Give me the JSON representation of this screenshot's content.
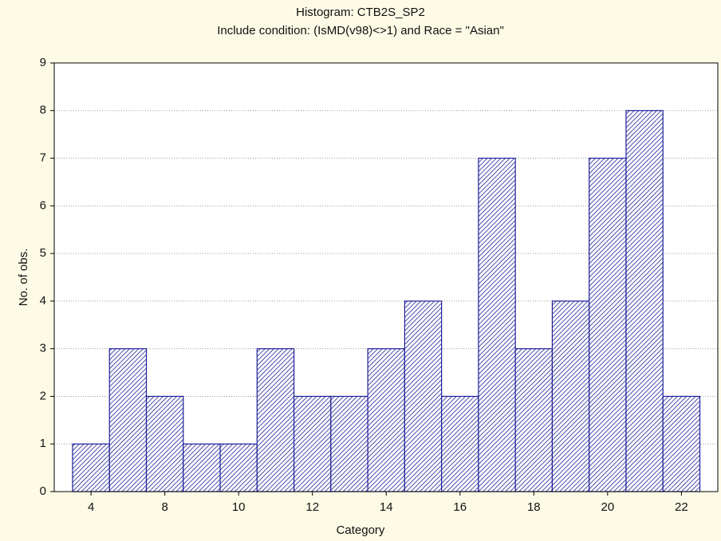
{
  "chart_data": {
    "type": "bar",
    "title": "Histogram: CTB2S_SP2",
    "subtitle": "Include condition: (IsMD(v98)<>1)  and Race = \"Asian\"",
    "x_label": "Category",
    "y_label": "No. of obs.",
    "categories": [
      4,
      null,
      8,
      null,
      10,
      null,
      12,
      null,
      14,
      null,
      16,
      null,
      18,
      null,
      20,
      null,
      22
    ],
    "values": [
      1,
      3,
      2,
      1,
      1,
      3,
      2,
      2,
      3,
      4,
      2,
      7,
      3,
      4,
      7,
      8,
      2
    ],
    "color": "#1f1f9a",
    "ylim": [
      0,
      9
    ],
    "yticks": [
      0,
      1,
      2,
      3,
      4,
      5,
      6,
      7,
      8,
      9
    ],
    "grid": true
  }
}
